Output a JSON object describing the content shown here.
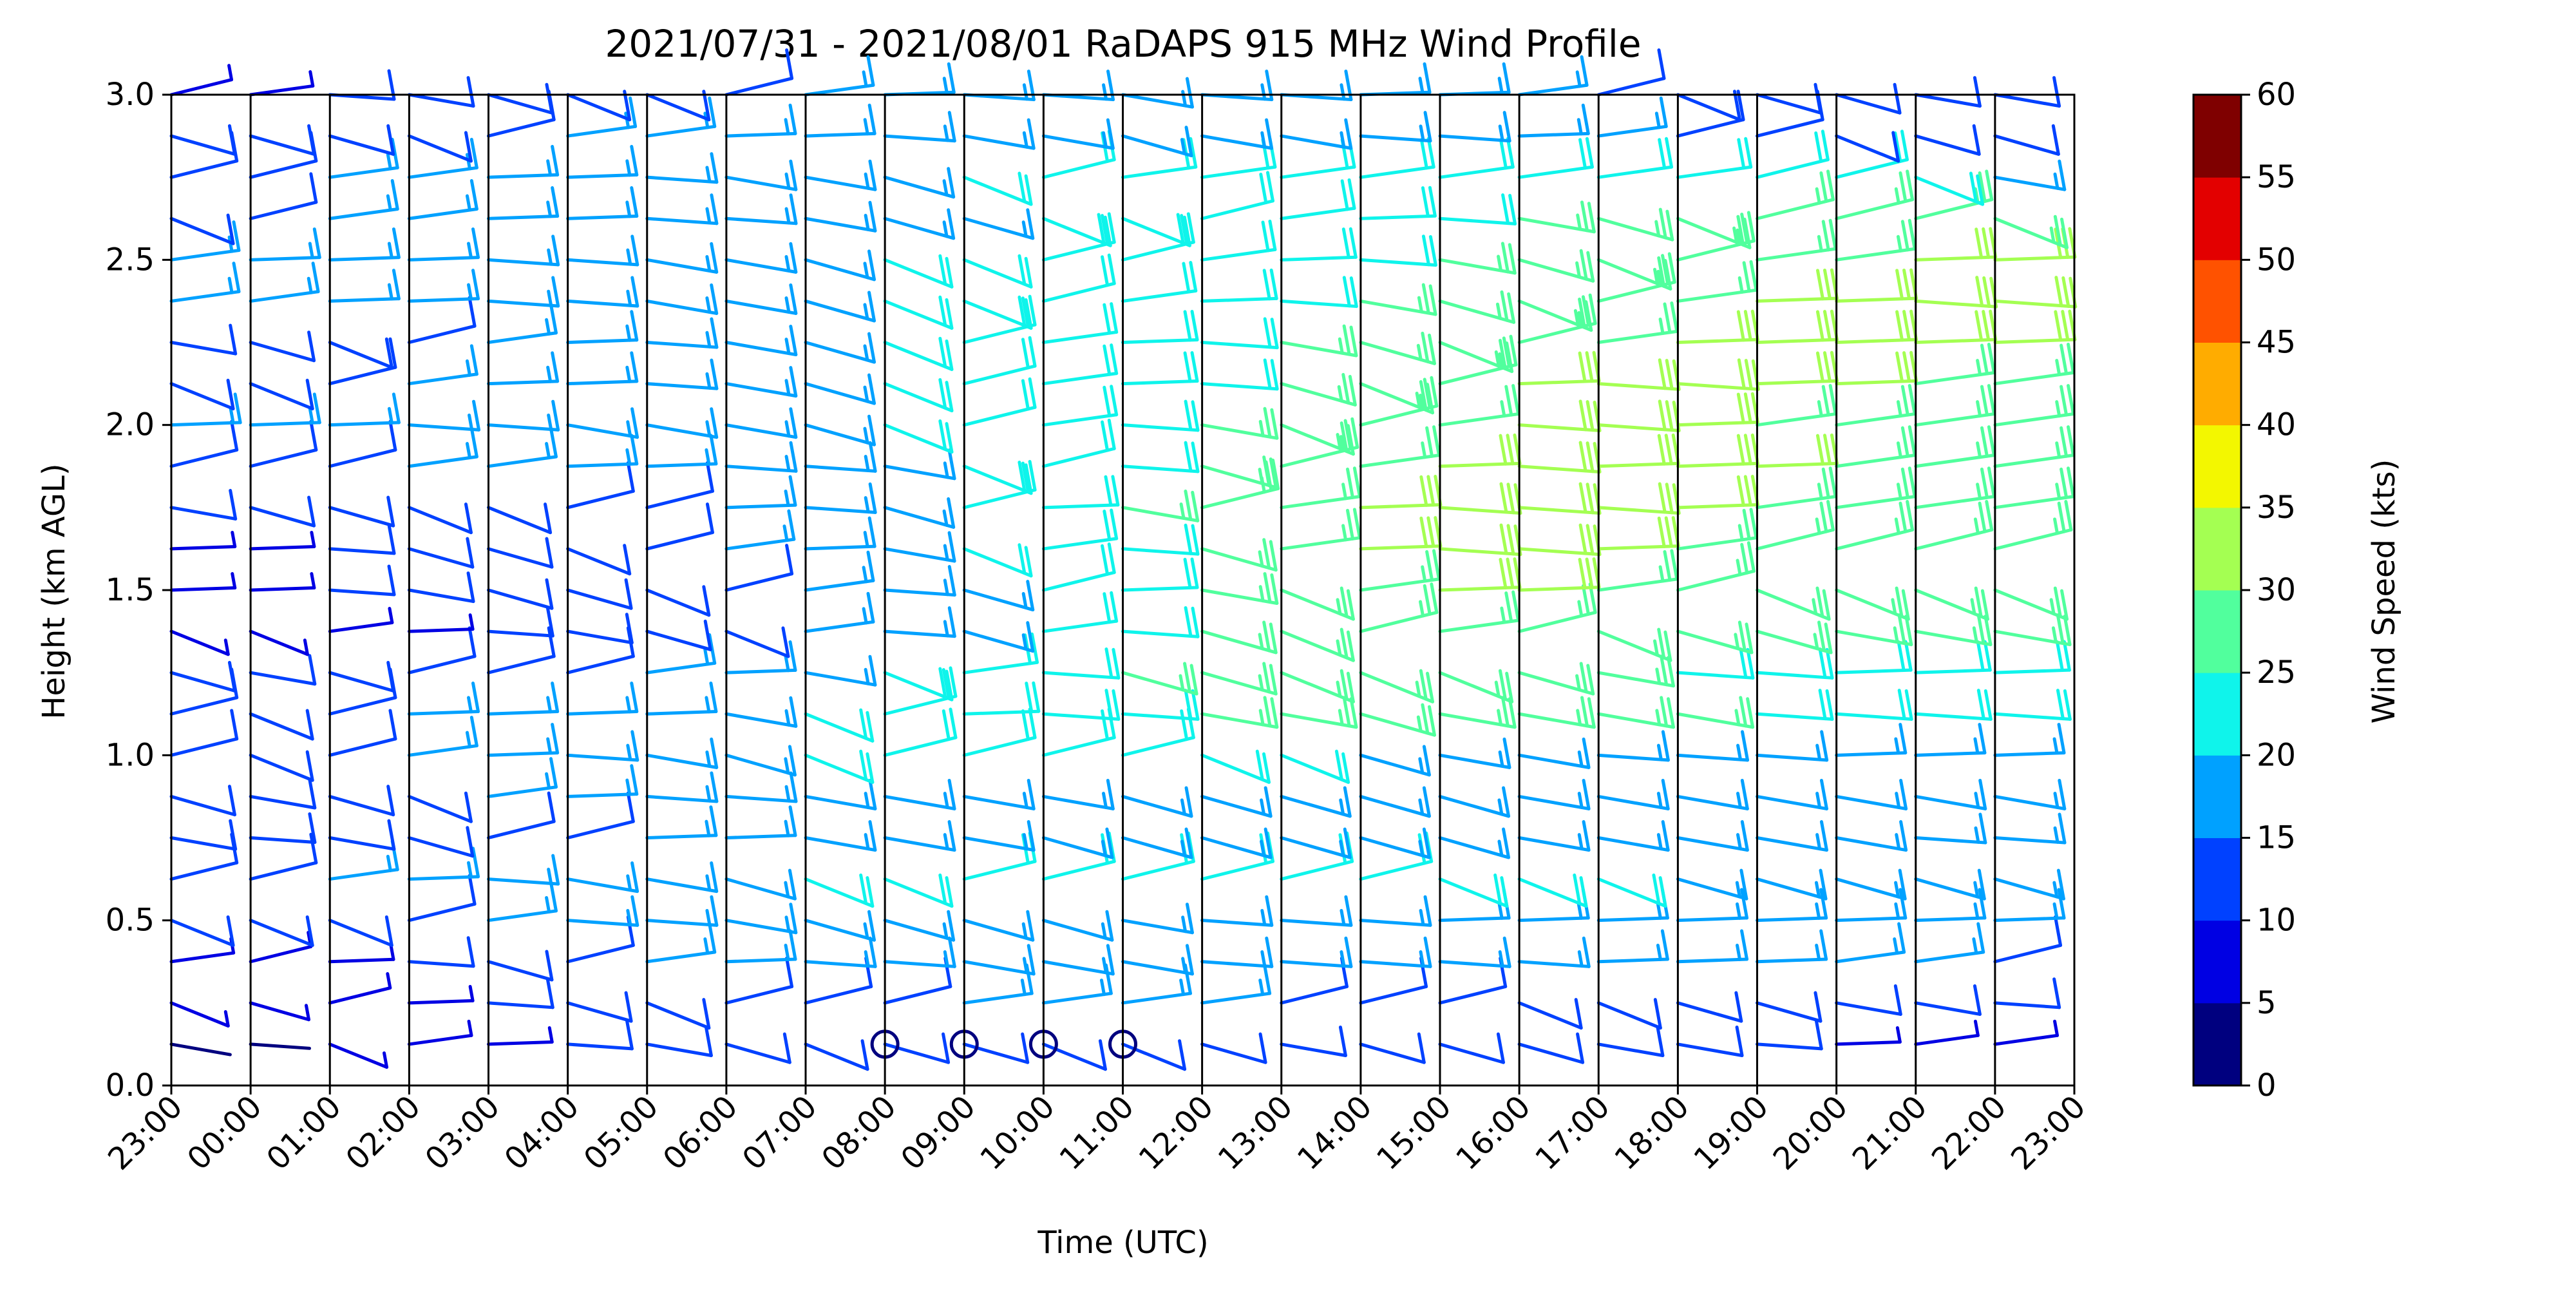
{
  "chart_data": {
    "type": "wind_barb_profile",
    "title": "2021/07/31 - 2021/08/01 RaDAPS 915 MHz Wind Profile",
    "xlabel": "Time (UTC)",
    "ylabel": "Height (km AGL)",
    "ylim": [
      0.0,
      3.0
    ],
    "y_ticks": [
      "0.0",
      "0.5",
      "1.0",
      "1.5",
      "2.0",
      "2.5",
      "3.0"
    ],
    "x_ticks": [
      "23:00",
      "00:00",
      "01:00",
      "02:00",
      "03:00",
      "04:00",
      "05:00",
      "06:00",
      "07:00",
      "08:00",
      "09:00",
      "10:00",
      "11:00",
      "12:00",
      "13:00",
      "14:00",
      "15:00",
      "16:00",
      "17:00",
      "18:00",
      "19:00",
      "20:00",
      "21:00",
      "22:00",
      "23:00"
    ],
    "grid": "vertical lines at each hour",
    "colorbar": {
      "label": "Wind Speed (kts)",
      "ticks": [
        "0",
        "5",
        "10",
        "15",
        "20",
        "25",
        "30",
        "35",
        "40",
        "45",
        "50",
        "55",
        "60"
      ],
      "colors": [
        "#00007f",
        "#0000e3",
        "#0041ff",
        "#00a1ff",
        "#0ff4eb",
        "#51ff9d",
        "#a4ff52",
        "#f3f700",
        "#ffac00",
        "#ff5200",
        "#e30000",
        "#7f0000"
      ]
    },
    "calm_markers": [
      "08:00",
      "09:00",
      "10:00",
      "11:00"
    ],
    "wind_speed_kts": [
      [
        4,
        3,
        6,
        8,
        9,
        10,
        11,
        12,
        13,
        12,
        12,
        13,
        13,
        12,
        11,
        12,
        12,
        12,
        11,
        11,
        10,
        9,
        8,
        8,
        9
      ],
      [
        6,
        5,
        7,
        9,
        10,
        12,
        13,
        14,
        14,
        14,
        15,
        15,
        15,
        15,
        14,
        14,
        14,
        13,
        13,
        12,
        12,
        11,
        11,
        10,
        10
      ],
      [
        8,
        7,
        9,
        10,
        12,
        14,
        15,
        16,
        17,
        17,
        18,
        18,
        18,
        17,
        17,
        17,
        17,
        17,
        16,
        16,
        16,
        15,
        15,
        14,
        14
      ],
      [
        13,
        13,
        13,
        14,
        15,
        17,
        17,
        18,
        19,
        19,
        19,
        19,
        18,
        17,
        17,
        17,
        16,
        16,
        16,
        16,
        16,
        16,
        16,
        16,
        15
      ],
      [
        14,
        14,
        15,
        16,
        17,
        18,
        18,
        19,
        20,
        20,
        21,
        21,
        21,
        21,
        21,
        21,
        20,
        20,
        20,
        19,
        19,
        19,
        19,
        19,
        19
      ],
      [
        11,
        10,
        11,
        12,
        14,
        14,
        16,
        16,
        18,
        18,
        18,
        19,
        19,
        19,
        19,
        19,
        19,
        18,
        18,
        18,
        18,
        18,
        17,
        17,
        17
      ],
      [
        12,
        11,
        12,
        13,
        15,
        16,
        17,
        17,
        18,
        18,
        18,
        18,
        19,
        19,
        19,
        19,
        19,
        18,
        18,
        18,
        18,
        18,
        18,
        18,
        18
      ],
      [
        14,
        13,
        14,
        15,
        16,
        17,
        18,
        19,
        20,
        21,
        21,
        21,
        21,
        20,
        20,
        19,
        18,
        18,
        17,
        17,
        17,
        16,
        16,
        16,
        16
      ],
      [
        14,
        13,
        14,
        16,
        16,
        16,
        16,
        18,
        20,
        21,
        23,
        24,
        24,
        25,
        25,
        26,
        25,
        25,
        25,
        25,
        24,
        24,
        24,
        24,
        24
      ],
      [
        12,
        11,
        12,
        14,
        14,
        14,
        15,
        16,
        18,
        20,
        22,
        24,
        26,
        26,
        27,
        27,
        27,
        26,
        25,
        24,
        24,
        23,
        23,
        23,
        23
      ],
      [
        6,
        6,
        8,
        9,
        10,
        11,
        12,
        13,
        15,
        17,
        19,
        22,
        24,
        26,
        27,
        28,
        29,
        28,
        27,
        26,
        26,
        25,
        25,
        25,
        25
      ],
      [
        9,
        9,
        10,
        11,
        12,
        12,
        13,
        14,
        15,
        17,
        19,
        21,
        23,
        25,
        27,
        29,
        30,
        30,
        29,
        28,
        27,
        27,
        27,
        27,
        27
      ],
      [
        9,
        9,
        10,
        12,
        12,
        13,
        14,
        15,
        16,
        18,
        20,
        22,
        24,
        26,
        29,
        30,
        31,
        31,
        30,
        29,
        28,
        28,
        28,
        28,
        28
      ],
      [
        11,
        12,
        12,
        13,
        13,
        14,
        14,
        16,
        17,
        19,
        21,
        23,
        25,
        28,
        29,
        30,
        31,
        31,
        31,
        30,
        29,
        29,
        29,
        29,
        29
      ],
      [
        14,
        14,
        14,
        15,
        15,
        16,
        16,
        17,
        17,
        18,
        20,
        21,
        24,
        26,
        28,
        29,
        30,
        31,
        30,
        30,
        30,
        29,
        29,
        29,
        29
      ],
      [
        16,
        16,
        16,
        17,
        17,
        18,
        18,
        18,
        19,
        20,
        21,
        22,
        24,
        25,
        27,
        28,
        29,
        31,
        31,
        30,
        29,
        29,
        29,
        29,
        29
      ],
      [
        13,
        13,
        14,
        15,
        16,
        16,
        17,
        18,
        19,
        20,
        21,
        22,
        23,
        24,
        26,
        27,
        28,
        30,
        31,
        31,
        30,
        30,
        29,
        29,
        29
      ],
      [
        11,
        12,
        13,
        14,
        15,
        16,
        17,
        18,
        19,
        20,
        21,
        22,
        23,
        24,
        25,
        26,
        27,
        28,
        29,
        30,
        30,
        30,
        30,
        30,
        30
      ],
      [
        15,
        15,
        16,
        16,
        17,
        17,
        18,
        18,
        19,
        20,
        20,
        21,
        22,
        23,
        24,
        25,
        26,
        27,
        28,
        29,
        30,
        30,
        31,
        31,
        31
      ],
      [
        15,
        16,
        16,
        16,
        17,
        17,
        18,
        18,
        19,
        20,
        20,
        21,
        21,
        22,
        23,
        24,
        25,
        26,
        27,
        28,
        29,
        29,
        30,
        30,
        30
      ],
      [
        13,
        14,
        15,
        15,
        16,
        16,
        17,
        17,
        18,
        19,
        19,
        20,
        20,
        21,
        22,
        23,
        24,
        25,
        26,
        27,
        28,
        28,
        28,
        27,
        26
      ],
      [
        14,
        14,
        15,
        15,
        16,
        16,
        17,
        18,
        18,
        19,
        20,
        21,
        22,
        22,
        22,
        22,
        22,
        22,
        22,
        22,
        21,
        21,
        20,
        18,
        16
      ],
      [
        12,
        12,
        12,
        13,
        14,
        15,
        15,
        16,
        16,
        17,
        18,
        18,
        19,
        18,
        18,
        17,
        17,
        16,
        15,
        14,
        14,
        13,
        12,
        12,
        11
      ],
      [
        7,
        8,
        10,
        11,
        12,
        13,
        13,
        14,
        15,
        16,
        17,
        17,
        18,
        17,
        17,
        16,
        16,
        15,
        14,
        13,
        12,
        12,
        11,
        11,
        10
      ]
    ]
  }
}
